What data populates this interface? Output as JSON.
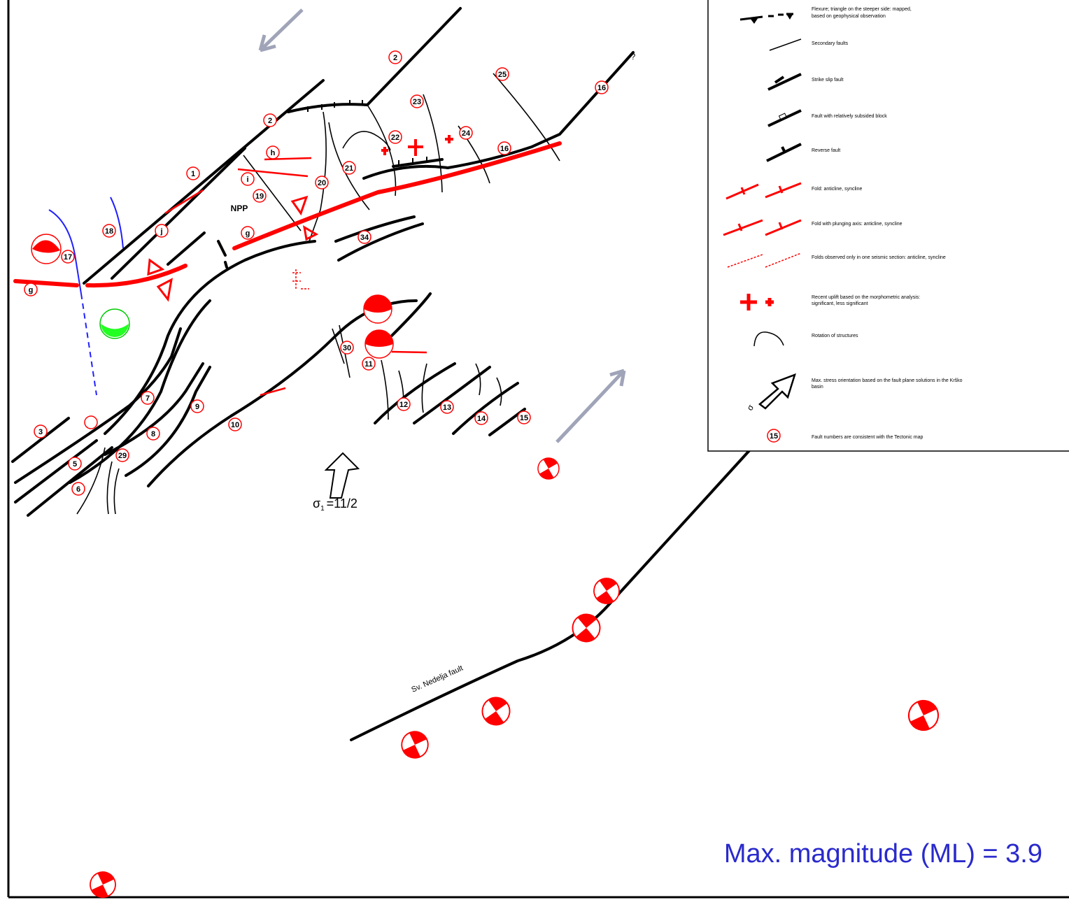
{
  "labels": [
    "2",
    "2",
    "25",
    "16",
    "23",
    "22",
    "24",
    "16",
    "h",
    "1",
    "21",
    "20",
    "i",
    "19",
    "j",
    "18",
    "g",
    "34",
    "17",
    "g",
    "30",
    "11",
    "7",
    "9",
    "12",
    "13",
    "14",
    "15",
    "3",
    "8",
    "10",
    "29",
    "5",
    "6"
  ],
  "npp": "NPP",
  "question": "?",
  "fault_name": "Sv. Nedelja fault",
  "stress": {
    "symbol": "σ",
    "subscript": "1",
    "value": "=11/2"
  },
  "magnitude": "Max. magnitude (ML) = 3.9",
  "legend": {
    "flexure": [
      "Flexure; triangle on the steeper side: mapped,",
      "based on geophysical observation"
    ],
    "secondary": "Secondary faults",
    "strike_slip": "Strike slip fault",
    "subsided": "Fault with relatively subsided block",
    "reverse": "Reverse fault",
    "fold": "Fold: anticline, syncline",
    "plunging": "Fold with plunging axis: anticline, syncline",
    "seismic": "Folds observed only in one seismic section: anticline, syncline",
    "uplift": [
      "Recent uplift based on the morphometric analysis:",
      "significant, less significant"
    ],
    "rotation": "Rotation of structures",
    "stress": [
      "Max. stress orientation based on the fault plane solutions in the Krško",
      "basin"
    ],
    "stress_symbol": "σ",
    "number_symbol": "15",
    "numbers": "Fault numbers are consistent with the Tectonic map"
  }
}
